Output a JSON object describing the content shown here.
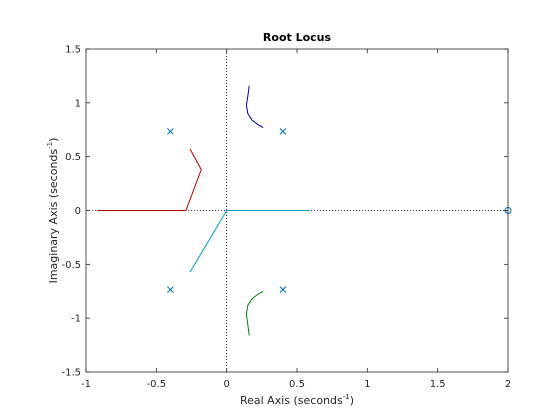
{
  "chart_data": {
    "type": "line",
    "title": "Root Locus",
    "xlabel": {
      "text": "Real Axis (seconds",
      "sup": "-1",
      "close": ")"
    },
    "ylabel": {
      "text": "Imaginary Axis (seconds",
      "sup": "-1",
      "close": ")"
    },
    "xlim": [
      -1,
      2
    ],
    "ylim": [
      -1.5,
      1.5
    ],
    "xticks": [
      -1,
      -0.5,
      0,
      0.5,
      1,
      1.5,
      2
    ],
    "xtick_labels": [
      "-1",
      "-0.5",
      "0",
      "0.5",
      "1",
      "1.5",
      "2"
    ],
    "yticks": [
      -1.5,
      -1,
      -0.5,
      0,
      0.5,
      1,
      1.5
    ],
    "ytick_labels": [
      "-1.5",
      "-1",
      "-0.5",
      "0",
      "0.5",
      "1",
      "1.5"
    ],
    "grid": false,
    "series": [
      {
        "color": "#0000b4",
        "x": [
          0.16,
          0.15,
          0.14,
          0.15,
          0.18,
          0.22,
          0.26
        ],
        "y": [
          1.16,
          1.06,
          0.98,
          0.9,
          0.84,
          0.8,
          0.77
        ]
      },
      {
        "color": "#b40000",
        "x": [
          -0.92,
          -0.55,
          -0.29,
          -0.18,
          -0.26
        ],
        "y": [
          0.0,
          0.0,
          0.0,
          0.38,
          0.57
        ]
      },
      {
        "color": "#00a0b4",
        "x": [
          -0.26,
          0.0,
          0.58
        ],
        "y": [
          -0.57,
          0.0,
          0.0
        ]
      },
      {
        "color": "#008000",
        "x": [
          0.26,
          0.22,
          0.18,
          0.15,
          0.14,
          0.15,
          0.16
        ],
        "y": [
          -0.75,
          -0.78,
          -0.82,
          -0.88,
          -0.96,
          -1.06,
          -1.16
        ]
      }
    ],
    "poles": [
      [
        -0.4,
        0.735
      ],
      [
        0.4,
        0.735
      ],
      [
        -0.4,
        -0.735
      ],
      [
        0.4,
        -0.735
      ]
    ],
    "zeros": [
      [
        2.0,
        0.0
      ]
    ],
    "marker_color": "#0072bd",
    "reference_line_color": "#000000"
  }
}
